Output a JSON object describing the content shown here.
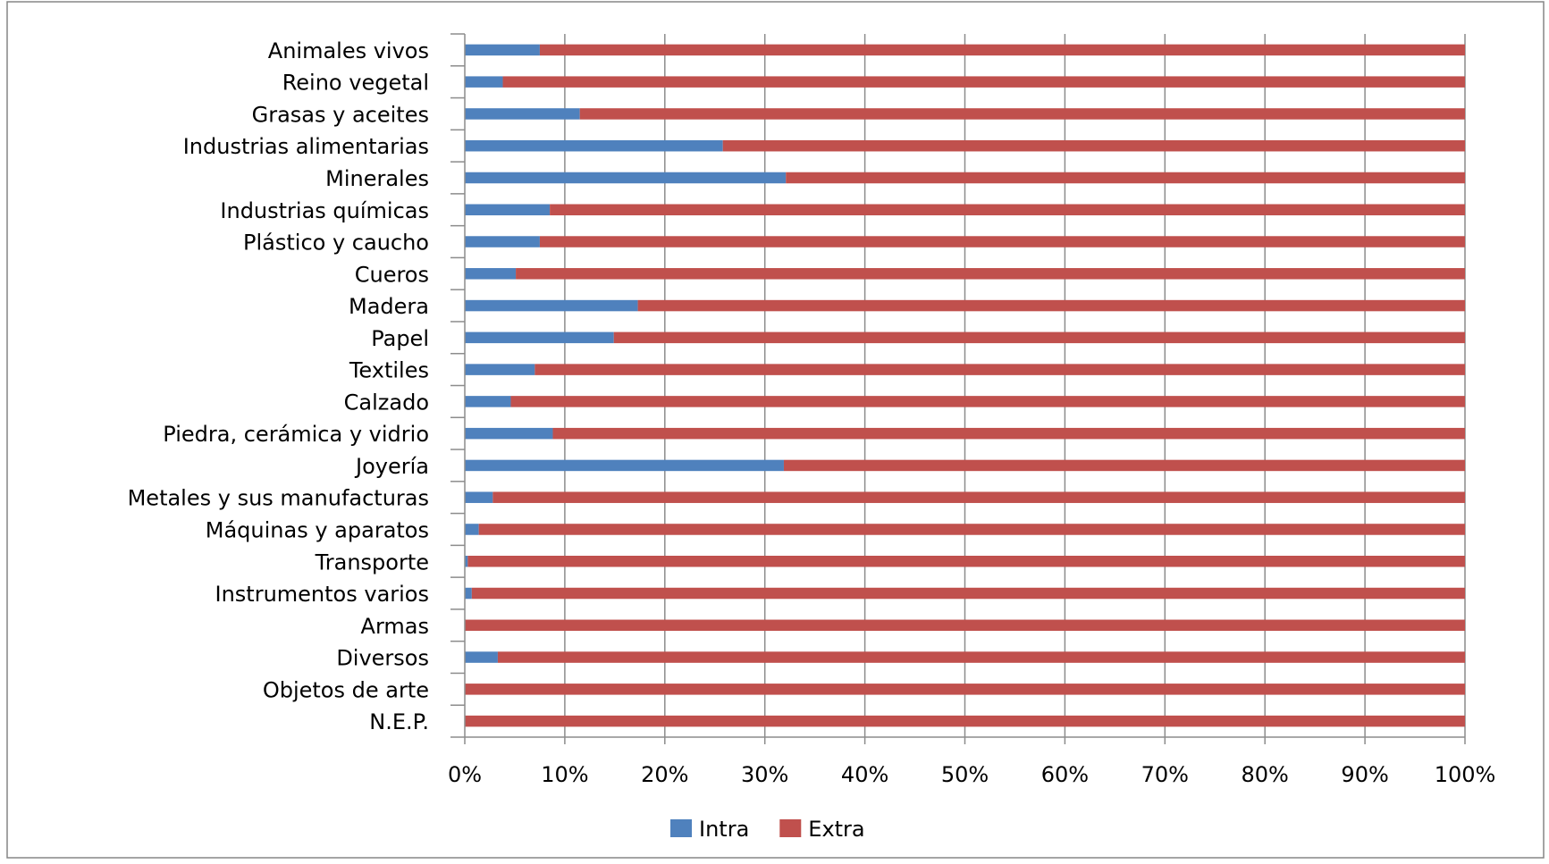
{
  "chart_data": {
    "type": "bar",
    "orientation": "horizontal",
    "stacked": "percent",
    "title": "",
    "xlabel": "",
    "ylabel": "",
    "xlim": [
      0,
      100
    ],
    "x_ticks": [
      "0%",
      "10%",
      "20%",
      "30%",
      "40%",
      "50%",
      "60%",
      "70%",
      "80%",
      "90%",
      "100%"
    ],
    "grid": "vertical",
    "legend_position": "bottom",
    "categories": [
      "Animales vivos",
      "Reino vegetal",
      "Grasas y aceites",
      "Industrias alimentarias",
      "Minerales",
      "Industrias químicas",
      "Plástico y caucho",
      "Cueros",
      "Madera",
      "Papel",
      "Textiles",
      "Calzado",
      "Piedra, cerámica y vidrio",
      "Joyería",
      "Metales y sus manufacturas",
      "Máquinas y aparatos",
      "Transporte",
      "Instrumentos varios",
      "Armas",
      "Diversos",
      "Objetos de arte",
      "N.E.P."
    ],
    "series": [
      {
        "name": "Intra",
        "color": "#4F81BD",
        "values": [
          7.5,
          3.8,
          11.5,
          25.8,
          32.1,
          8.5,
          7.5,
          5.1,
          17.3,
          14.9,
          7.0,
          4.6,
          8.8,
          31.9,
          2.8,
          1.4,
          0.3,
          0.7,
          0.0,
          3.3,
          0.0,
          0.0
        ]
      },
      {
        "name": "Extra",
        "color": "#C0504D",
        "values": [
          92.5,
          96.2,
          88.5,
          74.2,
          67.9,
          91.5,
          92.5,
          94.9,
          82.7,
          85.1,
          93.0,
          95.4,
          91.2,
          68.1,
          97.2,
          98.6,
          99.7,
          99.3,
          100.0,
          96.7,
          100.0,
          100.0
        ]
      }
    ]
  }
}
